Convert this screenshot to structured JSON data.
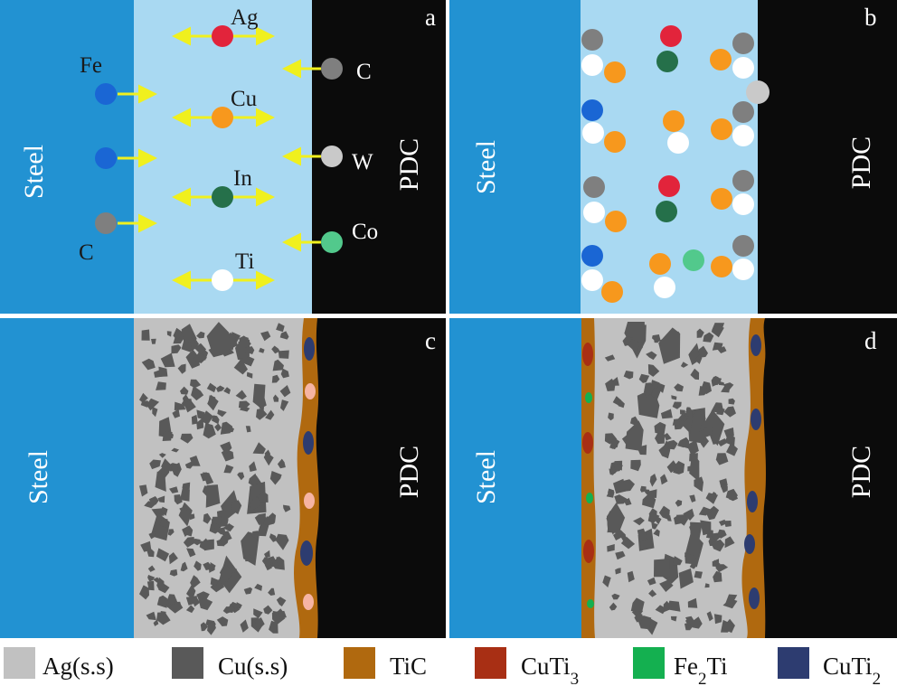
{
  "panels": [
    {
      "letter": "a",
      "steel": "Steel",
      "pdc": "PDC"
    },
    {
      "letter": "b",
      "steel": "Steel",
      "pdc": "PDC"
    },
    {
      "letter": "c",
      "steel": "Steel",
      "pdc": "PDC"
    },
    {
      "letter": "d",
      "steel": "Steel",
      "pdc": "PDC"
    }
  ],
  "panel_a_labels": {
    "ag": "Ag",
    "fe": "Fe",
    "cu": "Cu",
    "c_right": "C",
    "w": "W",
    "in": "In",
    "co": "Co",
    "ti": "Ti",
    "c_left": "C"
  },
  "legend": [
    {
      "pre": "Ag(s.s)",
      "sub": "",
      "post": "",
      "color": "#c1c1c1"
    },
    {
      "pre": "Cu(s.s)",
      "sub": "",
      "post": "",
      "color": "#595959"
    },
    {
      "pre": "TiC",
      "sub": "",
      "post": "",
      "color": "#b0690f"
    },
    {
      "pre": "CuTi",
      "sub": "3",
      "post": "",
      "color": "#a82f14"
    },
    {
      "pre": "Fe",
      "sub": "2",
      "post": "Ti",
      "color": "#14b050"
    },
    {
      "pre": "CuTi",
      "sub": "2",
      "post": "",
      "color": "#2d3c70"
    }
  ],
  "colors": {
    "steel": "#2292d2",
    "filler": "#a9d9f2",
    "pdc": "#0b0b0b",
    "arrow": "#f0f01e",
    "pink_phase": "#f6b4a3"
  },
  "atom_colors": {
    "Ag": "#e2243b",
    "Cu": "#f7981d",
    "In": "#25704a",
    "Ti": "#ffffff",
    "Fe": "#1a66d4",
    "C": "#7f7f7f",
    "W": "#c9c9c9",
    "Co": "#52c98c"
  }
}
